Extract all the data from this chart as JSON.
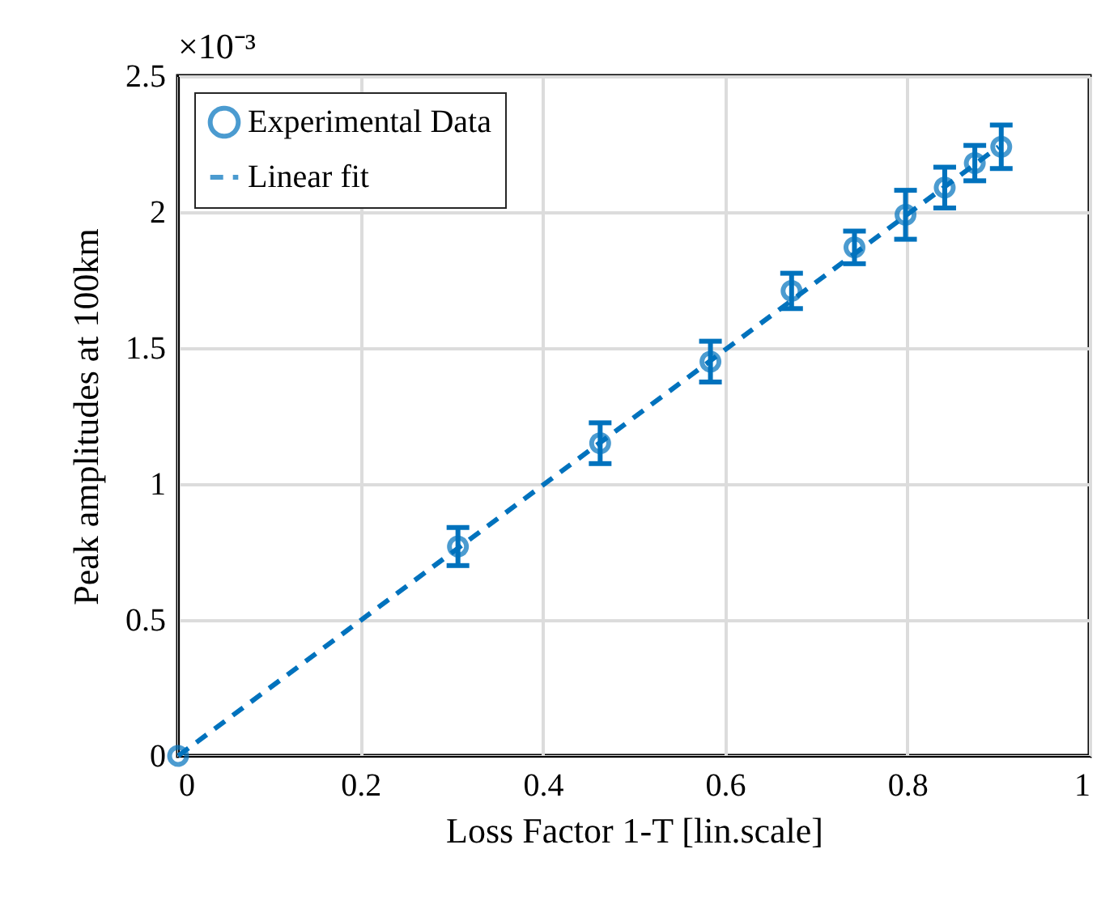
{
  "chart_data": {
    "type": "scatter",
    "xlabel": "Loss Factor 1-T [lin.scale]",
    "ylabel": "Peak amplitudes at 100km",
    "annotations": [
      "×10⁻³"
    ],
    "xlim": [
      0,
      1
    ],
    "xticks": [
      0,
      0.2,
      0.4,
      0.6,
      0.8,
      1
    ],
    "ylim": [
      0,
      2.5
    ],
    "yticks": [
      0,
      0.5,
      1,
      1.5,
      2,
      2.5
    ],
    "grid": true,
    "legend": "top left",
    "series": [
      {
        "name": "Experimental Data",
        "marker": "circle",
        "color": "#0072bd",
        "x": [
          0,
          0.307,
          0.463,
          0.584,
          0.673,
          0.742,
          0.798,
          0.841,
          0.874,
          0.903
        ],
        "values": [
          0,
          0.77,
          1.15,
          1.45,
          1.71,
          1.87,
          1.99,
          2.09,
          2.18,
          2.24
        ],
        "errors": [
          null,
          0.07,
          0.075,
          0.075,
          0.065,
          0.06,
          0.09,
          0.075,
          0.065,
          0.08
        ]
      },
      {
        "name": "Linear fit",
        "type": "line",
        "color": "#0072bd",
        "line_style": "dashed",
        "x": [
          0,
          0.9
        ],
        "values": [
          0,
          2.24
        ]
      }
    ]
  }
}
